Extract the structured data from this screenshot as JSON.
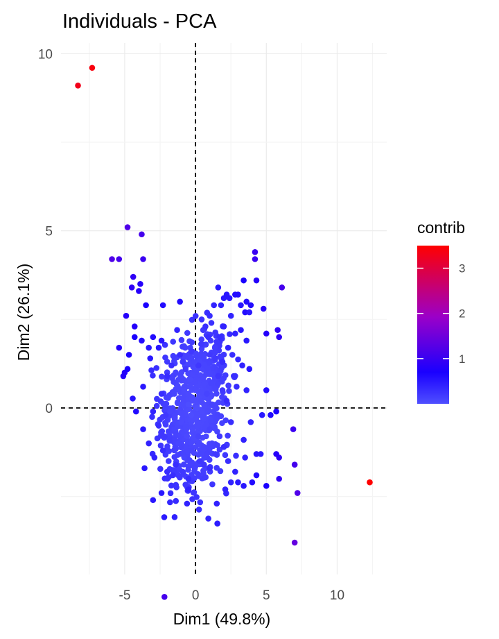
{
  "chart_data": {
    "type": "scatter",
    "title": "Individuals - PCA",
    "xlabel": "Dim1 (49.8%)",
    "ylabel": "Dim2 (26.1%)",
    "xlim": [
      -9.5,
      13.5
    ],
    "ylim": [
      -4.7,
      10.3
    ],
    "x_ticks": [
      -5,
      0,
      5,
      10
    ],
    "y_ticks": [
      0,
      5,
      10
    ],
    "grid": true,
    "reference_lines": {
      "x": 0,
      "y": 0,
      "style": "dashed"
    },
    "legend": {
      "title": "contrib",
      "placement": "right",
      "ticks": [
        1,
        2,
        3
      ],
      "min": 0,
      "max": 3.5,
      "low_color": "#4f4fff",
      "mid_color": "#1a00ff",
      "high_color": "#ff0000"
    },
    "points": [
      {
        "x": -8.3,
        "y": 9.1,
        "c": 3.3
      },
      {
        "x": -7.3,
        "y": 9.6,
        "c": 3.4
      },
      {
        "x": 12.3,
        "y": -2.1,
        "c": 3.5
      },
      {
        "x": 7.0,
        "y": -3.8,
        "c": 1.4
      },
      {
        "x": 7.2,
        "y": -2.4,
        "c": 1.2
      },
      {
        "x": 7.0,
        "y": -1.6,
        "c": 1.1
      },
      {
        "x": 6.9,
        "y": -0.6,
        "c": 1.0
      },
      {
        "x": 5.9,
        "y": -1.4,
        "c": 0.9
      },
      {
        "x": 5.7,
        "y": -1.3,
        "c": 0.8
      },
      {
        "x": 5.9,
        "y": -2.0,
        "c": 0.9
      },
      {
        "x": 5.0,
        "y": -2.2,
        "c": 0.7
      },
      {
        "x": 5.7,
        "y": -0.1,
        "c": 0.7
      },
      {
        "x": 5.3,
        "y": -0.2,
        "c": 0.6
      },
      {
        "x": 5.0,
        "y": 0.5,
        "c": 0.6
      },
      {
        "x": 4.7,
        "y": -0.2,
        "c": 0.5
      },
      {
        "x": 4.3,
        "y": -1.3,
        "c": 0.5
      },
      {
        "x": 4.6,
        "y": -1.3,
        "c": 0.5
      },
      {
        "x": 4.3,
        "y": -1.9,
        "c": 0.6
      },
      {
        "x": 4.0,
        "y": -2.1,
        "c": 0.6
      },
      {
        "x": 4.2,
        "y": 4.4,
        "c": 1.0
      },
      {
        "x": 4.2,
        "y": 4.2,
        "c": 1.0
      },
      {
        "x": 6.1,
        "y": 3.4,
        "c": 1.1
      },
      {
        "x": 5.8,
        "y": 2.2,
        "c": 0.9
      },
      {
        "x": 5.9,
        "y": 2.0,
        "c": 0.9
      },
      {
        "x": 5.0,
        "y": 2.1,
        "c": 0.8
      },
      {
        "x": 4.8,
        "y": 2.8,
        "c": 0.8
      },
      {
        "x": 4.3,
        "y": 3.6,
        "c": 0.8
      },
      {
        "x": 3.4,
        "y": 3.6,
        "c": 0.7
      },
      {
        "x": 3.6,
        "y": 3.0,
        "c": 0.6
      },
      {
        "x": 3.9,
        "y": 2.9,
        "c": 0.6
      },
      {
        "x": 3.5,
        "y": 2.7,
        "c": 0.6
      },
      {
        "x": 3.2,
        "y": 2.9,
        "c": 0.5
      },
      {
        "x": 3.0,
        "y": 3.2,
        "c": 0.6
      },
      {
        "x": 2.8,
        "y": 3.2,
        "c": 0.6
      },
      {
        "x": 2.2,
        "y": 3.2,
        "c": 0.5
      },
      {
        "x": 1.6,
        "y": 3.4,
        "c": 0.5
      },
      {
        "x": 2.0,
        "y": 3.1,
        "c": 0.5
      },
      {
        "x": 2.4,
        "y": 3.1,
        "c": 0.5
      },
      {
        "x": 2.5,
        "y": 2.6,
        "c": 0.4
      },
      {
        "x": 1.8,
        "y": 2.9,
        "c": 0.4
      },
      {
        "x": 3.2,
        "y": 2.2,
        "c": 0.5
      },
      {
        "x": 3.6,
        "y": 1.9,
        "c": 0.5
      },
      {
        "x": 2.8,
        "y": 2.1,
        "c": 0.4
      },
      {
        "x": 1.3,
        "y": 2.9,
        "c": 0.4
      },
      {
        "x": 2.0,
        "y": 2.3,
        "c": 0.4
      },
      {
        "x": 2.3,
        "y": 1.7,
        "c": 0.4
      },
      {
        "x": 1.0,
        "y": 2.6,
        "c": 0.3
      },
      {
        "x": 0.7,
        "y": 2.3,
        "c": 0.3
      },
      {
        "x": 3.8,
        "y": 2.7,
        "c": 0.5
      },
      {
        "x": 2.6,
        "y": 1.5,
        "c": 0.3
      },
      {
        "x": 1.7,
        "y": 2.0,
        "c": 0.3
      },
      {
        "x": 0.9,
        "y": 2.0,
        "c": 0.3
      },
      {
        "x": 1.4,
        "y": 1.4,
        "c": 0.2
      },
      {
        "x": -4.8,
        "y": 5.1,
        "c": 1.2
      },
      {
        "x": -3.8,
        "y": 4.9,
        "c": 1.1
      },
      {
        "x": -5.9,
        "y": 4.2,
        "c": 1.2
      },
      {
        "x": -5.4,
        "y": 4.2,
        "c": 1.1
      },
      {
        "x": -3.7,
        "y": 4.2,
        "c": 1.0
      },
      {
        "x": -4.4,
        "y": 3.7,
        "c": 0.9
      },
      {
        "x": -4.5,
        "y": 3.4,
        "c": 0.9
      },
      {
        "x": -3.9,
        "y": 3.5,
        "c": 0.8
      },
      {
        "x": -4.0,
        "y": 3.3,
        "c": 0.8
      },
      {
        "x": -3.5,
        "y": 2.9,
        "c": 0.7
      },
      {
        "x": -2.3,
        "y": 2.9,
        "c": 0.6
      },
      {
        "x": -1.1,
        "y": 3.0,
        "c": 0.6
      },
      {
        "x": -4.9,
        "y": 2.6,
        "c": 0.8
      },
      {
        "x": -4.3,
        "y": 2.3,
        "c": 0.8
      },
      {
        "x": -4.3,
        "y": 2.0,
        "c": 0.7
      },
      {
        "x": -3.8,
        "y": 1.9,
        "c": 0.6
      },
      {
        "x": -3.0,
        "y": 2.0,
        "c": 0.6
      },
      {
        "x": -2.4,
        "y": 1.9,
        "c": 0.5
      },
      {
        "x": -2.6,
        "y": 1.7,
        "c": 0.5
      },
      {
        "x": -1.3,
        "y": 2.2,
        "c": 0.4
      },
      {
        "x": -5.4,
        "y": 1.7,
        "c": 0.8
      },
      {
        "x": -4.7,
        "y": 1.5,
        "c": 0.7
      },
      {
        "x": -3.3,
        "y": 1.7,
        "c": 0.5
      },
      {
        "x": -3.2,
        "y": 1.4,
        "c": 0.5
      },
      {
        "x": -5.1,
        "y": 0.9,
        "c": 0.8
      },
      {
        "x": -5.0,
        "y": 1.0,
        "c": 0.8
      },
      {
        "x": -4.8,
        "y": 1.1,
        "c": 0.7
      },
      {
        "x": -3.7,
        "y": 0.6,
        "c": 0.5
      },
      {
        "x": -4.2,
        "y": -0.1,
        "c": 0.6
      },
      {
        "x": -3.0,
        "y": -0.1,
        "c": 0.4
      },
      {
        "x": -3.7,
        "y": -0.6,
        "c": 0.5
      },
      {
        "x": -3.3,
        "y": -1.0,
        "c": 0.4
      },
      {
        "x": -3.6,
        "y": -1.7,
        "c": 0.5
      },
      {
        "x": -2.9,
        "y": -1.4,
        "c": 0.4
      },
      {
        "x": -2.4,
        "y": -2.4,
        "c": 0.5
      },
      {
        "x": -3.0,
        "y": -2.6,
        "c": 0.5
      },
      {
        "x": -0.5,
        "y": -2.0,
        "c": 0.3
      },
      {
        "x": -0.5,
        "y": -2.3,
        "c": 0.4
      },
      {
        "x": -0.6,
        "y": -2.7,
        "c": 0.4
      },
      {
        "x": 1.5,
        "y": -2.7,
        "c": 0.4
      },
      {
        "x": 2.1,
        "y": -2.3,
        "c": 0.4
      },
      {
        "x": 2.5,
        "y": -2.1,
        "c": 0.4
      },
      {
        "x": 3.0,
        "y": -2.1,
        "c": 0.5
      },
      {
        "x": 3.4,
        "y": -2.2,
        "c": 0.5
      },
      {
        "x": 2.8,
        "y": -1.8,
        "c": 0.4
      },
      {
        "x": 1.0,
        "y": -1.7,
        "c": 0.3
      },
      {
        "x": 3.5,
        "y": -1.4,
        "c": 0.4
      },
      {
        "x": 3.4,
        "y": -0.9,
        "c": 0.4
      },
      {
        "x": 3.9,
        "y": -0.4,
        "c": 0.4
      },
      {
        "x": 3.6,
        "y": 0.5,
        "c": 0.4
      },
      {
        "x": 2.9,
        "y": 0.6,
        "c": 0.3
      },
      {
        "x": 3.3,
        "y": 1.2,
        "c": 0.4
      },
      {
        "x": 3.8,
        "y": 1.1,
        "c": 0.5
      },
      {
        "x": 2.7,
        "y": 0.9,
        "c": 0.3
      },
      {
        "x": 2.2,
        "y": 0.2,
        "c": 0.3
      },
      {
        "x": 2.5,
        "y": -0.4,
        "c": 0.3
      },
      {
        "x": 2.0,
        "y": -1.1,
        "c": 0.3
      },
      {
        "x": 1.7,
        "y": -0.8,
        "c": 0.2
      },
      {
        "x": 1.4,
        "y": -1.3,
        "c": 0.2
      },
      {
        "x": 0.6,
        "y": -1.6,
        "c": 0.2
      },
      {
        "x": -2.0,
        "y": -1.8,
        "c": 0.3
      },
      {
        "x": -1.6,
        "y": -1.9,
        "c": 0.3
      },
      {
        "x": -1.4,
        "y": -1.6,
        "c": 0.3
      },
      {
        "x": -2.3,
        "y": -1.2,
        "c": 0.3
      },
      {
        "x": -2.6,
        "y": -0.5,
        "c": 0.3
      },
      {
        "x": -2.1,
        "y": -0.2,
        "c": 0.2
      },
      {
        "x": -2.4,
        "y": 0.4,
        "c": 0.3
      },
      {
        "x": -2.0,
        "y": 0.9,
        "c": 0.3
      },
      {
        "x": -1.7,
        "y": 1.2,
        "c": 0.3
      },
      {
        "x": -1.1,
        "y": 1.5,
        "c": 0.3
      },
      {
        "x": -0.7,
        "y": 1.1,
        "c": 0.2
      },
      {
        "x": -0.3,
        "y": 1.6,
        "c": 0.2
      },
      {
        "x": 0.4,
        "y": 1.8,
        "c": 0.2
      },
      {
        "x": 0.2,
        "y": 1.2,
        "c": 0.2
      },
      {
        "x": 1.0,
        "y": 1.5,
        "c": 0.2
      },
      {
        "x": 1.9,
        "y": 1.3,
        "c": 0.3
      },
      {
        "x": 1.6,
        "y": 0.9,
        "c": 0.2
      },
      {
        "x": 1.1,
        "y": 0.7,
        "c": 0.1
      },
      {
        "x": 0.8,
        "y": 0.4,
        "c": 0.1
      },
      {
        "x": 1.2,
        "y": 0.1,
        "c": 0.1
      },
      {
        "x": 1.5,
        "y": -0.3,
        "c": 0.1
      },
      {
        "x": 1.0,
        "y": -0.6,
        "c": 0.1
      },
      {
        "x": 0.6,
        "y": -1.1,
        "c": 0.1
      },
      {
        "x": 0.2,
        "y": -0.8,
        "c": 0.1
      },
      {
        "x": -0.3,
        "y": -1.2,
        "c": 0.1
      },
      {
        "x": -0.8,
        "y": -1.4,
        "c": 0.1
      },
      {
        "x": -1.2,
        "y": -1.0,
        "c": 0.1
      },
      {
        "x": -1.5,
        "y": -0.6,
        "c": 0.1
      },
      {
        "x": -1.8,
        "y": -0.1,
        "c": 0.1
      },
      {
        "x": -1.5,
        "y": 0.4,
        "c": 0.1
      },
      {
        "x": -1.2,
        "y": 0.8,
        "c": 0.1
      },
      {
        "x": -0.8,
        "y": 0.5,
        "c": 0.05
      },
      {
        "x": -0.4,
        "y": 0.8,
        "c": 0.05
      },
      {
        "x": 0.0,
        "y": 0.5,
        "c": 0.05
      },
      {
        "x": 0.4,
        "y": 0.2,
        "c": 0.05
      },
      {
        "x": 0.6,
        "y": -0.3,
        "c": 0.05
      },
      {
        "x": 0.2,
        "y": -0.4,
        "c": 0.05
      },
      {
        "x": -0.2,
        "y": -0.6,
        "c": 0.05
      },
      {
        "x": -0.6,
        "y": -0.8,
        "c": 0.05
      },
      {
        "x": -1.0,
        "y": -0.4,
        "c": 0.05
      },
      {
        "x": -1.0,
        "y": 0.1,
        "c": 0.05
      },
      {
        "x": -0.5,
        "y": 0.1,
        "c": 0.02
      },
      {
        "x": 0.1,
        "y": 0.0,
        "c": 0.02
      },
      {
        "x": -0.3,
        "y": -0.2,
        "c": 0.02
      },
      {
        "x": -1.9,
        "y": -1.5,
        "c": 0.2
      },
      {
        "x": -2.2,
        "y": -0.8,
        "c": 0.2
      },
      {
        "x": -0.9,
        "y": -1.8,
        "c": 0.2
      },
      {
        "x": 0.3,
        "y": -1.5,
        "c": 0.2
      },
      {
        "x": 2.3,
        "y": -1.5,
        "c": 0.3
      },
      {
        "x": 1.9,
        "y": 0.5,
        "c": 0.2
      },
      {
        "x": -0.1,
        "y": 1.3,
        "c": 0.1
      },
      {
        "x": -0.9,
        "y": 1.3,
        "c": 0.2
      }
    ],
    "dense_clusters": [
      {
        "cx": -0.8,
        "cy": -0.3,
        "sx": 0.9,
        "sy": 1.2,
        "n": 360
      },
      {
        "cx": 0.9,
        "cy": -0.1,
        "sx": 0.7,
        "sy": 1.1,
        "n": 200
      },
      {
        "cx": 1.0,
        "cy": 1.0,
        "sx": 0.6,
        "sy": 0.7,
        "n": 80
      }
    ]
  }
}
